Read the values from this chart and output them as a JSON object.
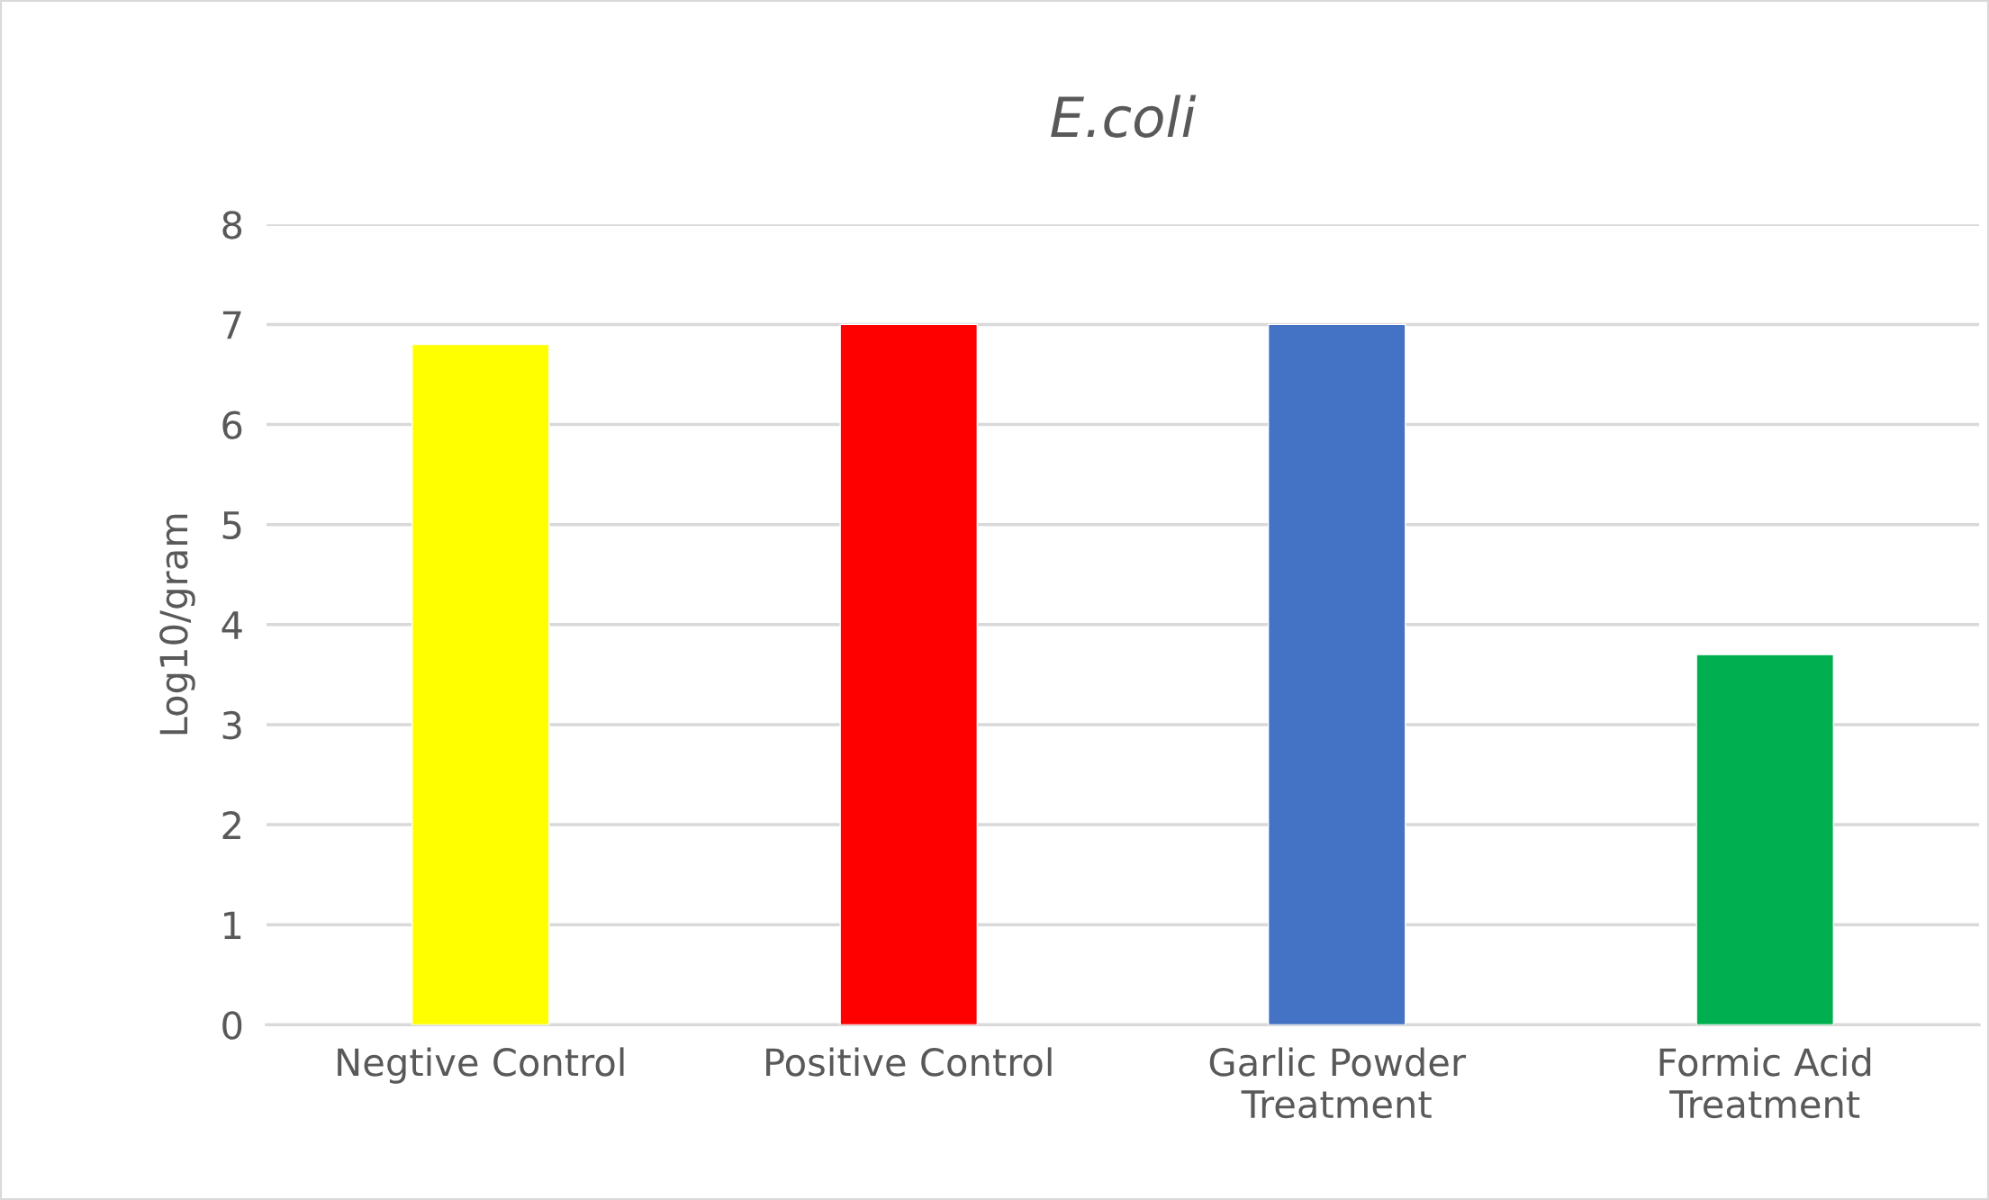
{
  "chart_data": {
    "type": "bar",
    "title": "E.coli",
    "ylabel": "Log10/gram",
    "categories": [
      "Negtive Control",
      "Positive Control",
      "Garlic Powder Treatment",
      "Formic Acid Treatment"
    ],
    "values": [
      6.8,
      7.0,
      7.0,
      3.7
    ],
    "colors": [
      "#ffff00",
      "#ff0000",
      "#4472c4",
      "#00b050"
    ],
    "ylim": [
      0,
      8
    ],
    "yticks": [
      0,
      1,
      2,
      3,
      4,
      5,
      6,
      7,
      8
    ],
    "grid": "y"
  }
}
